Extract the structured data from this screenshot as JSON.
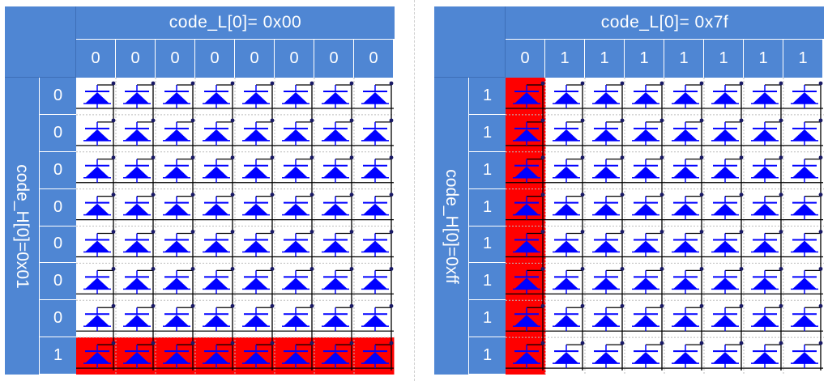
{
  "colors": {
    "header_bg": "#4f86d3",
    "led_on": "#0000ff",
    "highlight": "#ff0000",
    "wire": "#000000"
  },
  "icons": {
    "led": "diode-icon"
  },
  "panels": [
    {
      "title": "code_L[0]= 0x00",
      "row_title": "code_H[0]=0x01",
      "columns": [
        "0",
        "0",
        "0",
        "0",
        "0",
        "0",
        "0",
        "0"
      ],
      "rows": [
        "0",
        "0",
        "0",
        "0",
        "0",
        "0",
        "0",
        "1"
      ]
    },
    {
      "title": "code_L[0]= 0x7f",
      "row_title": "code_H[0]=0xff",
      "columns": [
        "0",
        "1",
        "1",
        "1",
        "1",
        "1",
        "1",
        "1"
      ],
      "rows": [
        "1",
        "1",
        "1",
        "1",
        "1",
        "1",
        "1",
        "1"
      ]
    }
  ]
}
